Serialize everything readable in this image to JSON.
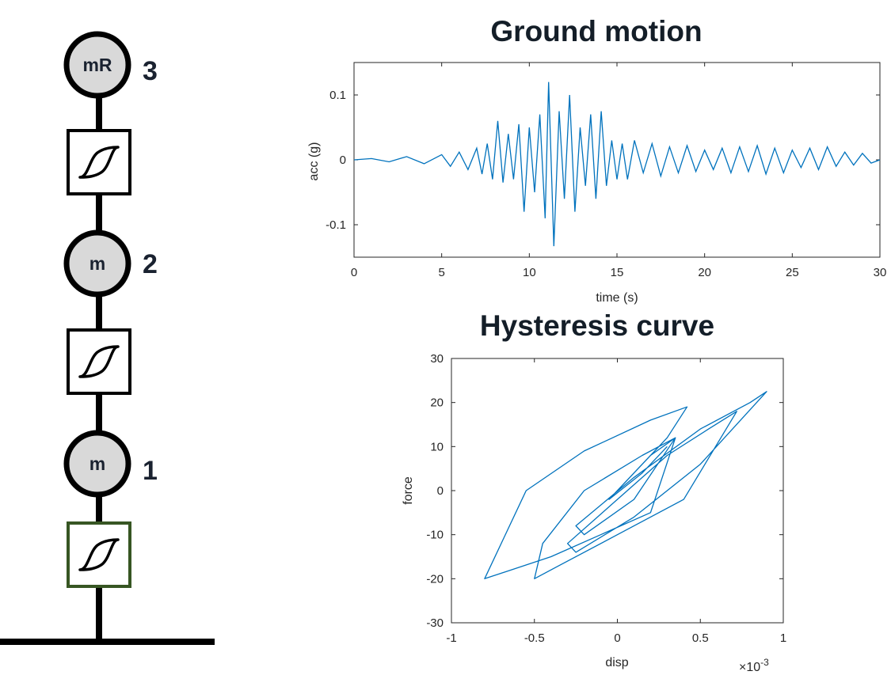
{
  "structure": {
    "masses": [
      {
        "label": "mR",
        "floor": "3"
      },
      {
        "label": "m",
        "floor": "2"
      },
      {
        "label": "m",
        "floor": "1"
      }
    ],
    "colors": {
      "stroke": "#000000",
      "mass_fill": "#d9d9d9",
      "base_spring_border": "#375623",
      "floor_text": "#1a2230"
    }
  },
  "chart_data": [
    {
      "type": "line",
      "title": "Ground motion",
      "xlabel": "time (s)",
      "ylabel": "acc (g)",
      "xlim": [
        0,
        30
      ],
      "ylim": [
        -0.15,
        0.15
      ],
      "xticks": [
        "0",
        "5",
        "10",
        "15",
        "20",
        "25",
        "30"
      ],
      "yticks": [
        "0.1",
        "0",
        "-0.1"
      ],
      "series_color": "#0072bd",
      "series": [
        {
          "x": [
            0,
            1.0,
            2.0,
            3.0,
            4.0,
            5.0,
            5.5,
            6.0,
            6.5,
            7.0,
            7.3,
            7.6,
            7.9,
            8.2,
            8.5,
            8.8,
            9.1,
            9.4,
            9.7,
            10.0,
            10.3,
            10.6,
            10.9,
            11.1,
            11.4,
            11.7,
            12.0,
            12.3,
            12.6,
            12.9,
            13.2,
            13.5,
            13.8,
            14.1,
            14.4,
            14.7,
            15.0,
            15.3,
            15.6,
            16.0,
            16.5,
            17.0,
            17.5,
            18.0,
            18.5,
            19.0,
            19.5,
            20.0,
            20.5,
            21.0,
            21.5,
            22.0,
            22.5,
            23.0,
            23.5,
            24.0,
            24.5,
            25.0,
            25.5,
            26.0,
            26.5,
            27.0,
            27.5,
            28.0,
            28.5,
            29.0,
            29.5,
            30.0
          ],
          "y": [
            0,
            0.002,
            -0.003,
            0.005,
            -0.006,
            0.008,
            -0.01,
            0.012,
            -0.015,
            0.018,
            -0.022,
            0.025,
            -0.03,
            0.06,
            -0.035,
            0.04,
            -0.03,
            0.055,
            -0.08,
            0.05,
            -0.05,
            0.07,
            -0.09,
            0.12,
            -0.133,
            0.075,
            -0.06,
            0.1,
            -0.08,
            0.05,
            -0.04,
            0.07,
            -0.06,
            0.075,
            -0.04,
            0.03,
            -0.03,
            0.025,
            -0.03,
            0.03,
            -0.02,
            0.025,
            -0.025,
            0.02,
            -0.02,
            0.022,
            -0.018,
            0.015,
            -0.015,
            0.018,
            -0.02,
            0.02,
            -0.018,
            0.022,
            -0.022,
            0.018,
            -0.02,
            0.015,
            -0.012,
            0.018,
            -0.015,
            0.02,
            -0.01,
            0.012,
            -0.008,
            0.01,
            -0.005,
            0.0
          ]
        }
      ]
    },
    {
      "type": "line",
      "title": "Hysteresis curve",
      "xlabel": "disp",
      "ylabel": "force",
      "x_exponent_label": "×10",
      "x_exponent_power": "-3",
      "xlim": [
        -1,
        1
      ],
      "ylim": [
        -30,
        30
      ],
      "xticks": [
        "-1",
        "-0.5",
        "0",
        "0.5",
        "1"
      ],
      "yticks": [
        "30",
        "20",
        "10",
        "0",
        "-10",
        "-20",
        "-30"
      ],
      "series_color": "#0072bd",
      "series": [
        {
          "x": [
            0,
            0.3,
            0.42,
            0.2,
            -0.2,
            -0.55,
            -0.8,
            -0.72,
            -0.4,
            -0.1,
            0.2,
            0.35,
            0.15,
            -0.2,
            -0.45,
            -0.5,
            -0.35,
            0.0,
            0.4,
            0.72,
            0.55,
            0.3,
            0.0,
            -0.3,
            -0.25,
            0.1,
            0.5,
            0.9,
            0.8,
            0.5,
            0.1,
            -0.25,
            -0.2,
            0.1,
            0.35,
            0.2,
            -0.05,
            0.15,
            0.3
          ],
          "y": [
            0,
            12,
            19,
            16,
            9,
            0,
            -20,
            -19,
            -15,
            -10,
            -5,
            12,
            8,
            0,
            -12,
            -20,
            -17,
            -10,
            -2,
            18,
            14,
            8,
            -2,
            -12,
            -14,
            -6,
            6,
            22.5,
            20,
            14,
            3,
            -8,
            -10,
            -2,
            12,
            8,
            -2,
            4,
            10
          ]
        }
      ]
    }
  ]
}
